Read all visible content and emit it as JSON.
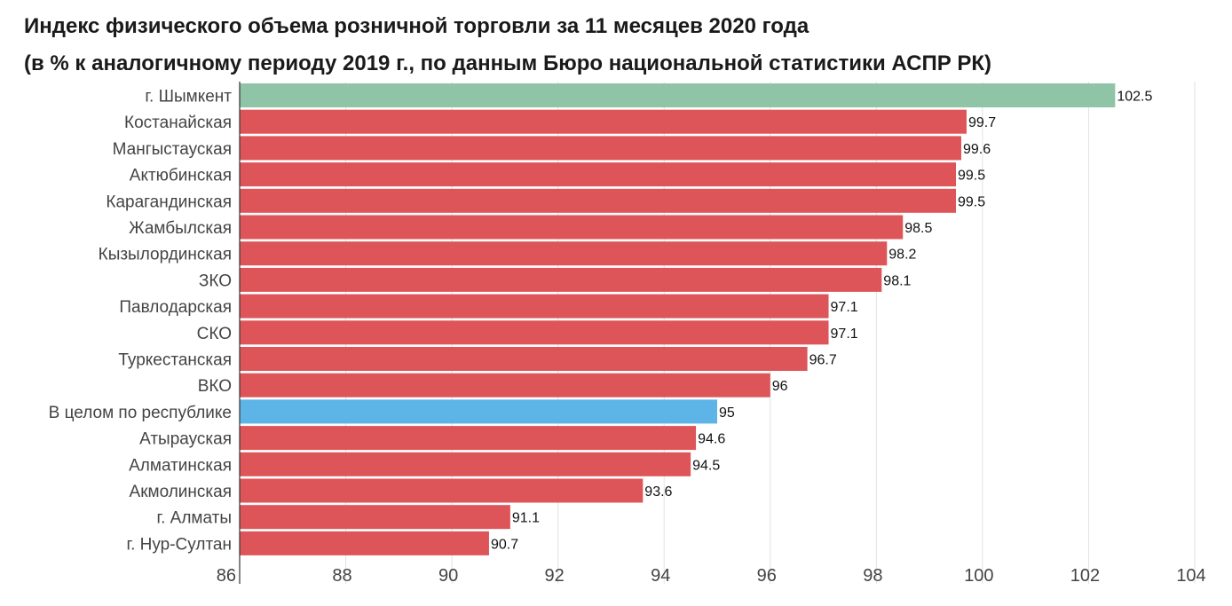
{
  "chart_data": {
    "type": "bar",
    "orientation": "horizontal",
    "title": "Индекс физического объема розничной торговли за 11 месяцев 2020 года",
    "subtitle": "(в % к аналогичному периоду 2019 г., по данным Бюро национальной статистики АСПР РК)",
    "categories": [
      "г. Шымкент",
      "Костанайская",
      "Мангыстауская",
      "Актюбинская",
      "Карагандинская",
      "Жамбылская",
      "Кызылординская",
      "ЗКО",
      "Павлодарская",
      "СКО",
      "Туркестанская",
      "ВКО",
      "В целом по республике",
      "Атырауская",
      "Алматинская",
      "Акмолинская",
      "г. Алматы",
      "г. Нур-Султан"
    ],
    "values": [
      102.5,
      99.7,
      99.6,
      99.5,
      99.5,
      98.5,
      98.2,
      98.1,
      97.1,
      97.1,
      96.7,
      96,
      95,
      94.6,
      94.5,
      93.6,
      91.1,
      90.7
    ],
    "value_labels": [
      "102.5",
      "99.7",
      "99.6",
      "99.5",
      "99.5",
      "98.5",
      "98.2",
      "98.1",
      "97.1",
      "97.1",
      "96.7",
      "96",
      "95",
      "94.6",
      "94.5",
      "93.6",
      "91.1",
      "90.7"
    ],
    "xlim": [
      86,
      104
    ],
    "xticks": [
      "86",
      "88",
      "90",
      "92",
      "94",
      "96",
      "98",
      "100",
      "102",
      "104"
    ],
    "grid": true,
    "colors": {
      "highlight_top": "#8fc4a6",
      "national_total": "#5db4e6",
      "default": "#dd5558"
    },
    "bar_colors": [
      "highlight_top",
      "default",
      "default",
      "default",
      "default",
      "default",
      "default",
      "default",
      "default",
      "default",
      "default",
      "default",
      "national_total",
      "default",
      "default",
      "default",
      "default",
      "default"
    ]
  }
}
